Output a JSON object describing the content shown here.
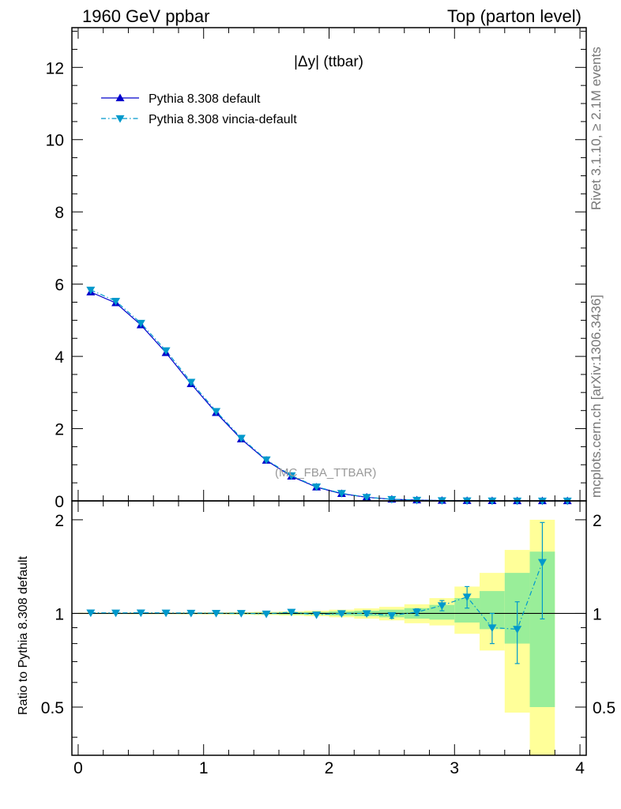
{
  "header": {
    "left": "1960 GeV ppbar",
    "right": "Top (parton level)"
  },
  "side_labels": {
    "rivet": "Rivet 3.1.10, ≥ 2.1M events",
    "source": "mcplots.cern.ch [arXiv:1306.3436]"
  },
  "panel_title": "|Δy| (ttbar)",
  "analysis_tag": "(MC_FBA_TTBAR)",
  "ratio_ylabel": "Ratio to Pythia 8.308 default",
  "chart_data": [
    {
      "type": "line",
      "title": "|Δy| (ttbar)",
      "xlabel": "",
      "ylabel": "",
      "xlim": [
        -0.05,
        4.05
      ],
      "ylim": [
        0,
        13.1
      ],
      "grid": false,
      "legend_position": "top-left",
      "x_ticks": [
        "0",
        "1",
        "2",
        "3",
        "4"
      ],
      "y_ticks": [
        "0",
        "2",
        "4",
        "6",
        "8",
        "10",
        "12"
      ],
      "x": [
        0.1,
        0.3,
        0.5,
        0.7,
        0.9,
        1.1,
        1.3,
        1.5,
        1.7,
        1.9,
        2.1,
        2.3,
        2.5,
        2.7,
        2.9,
        3.1,
        3.3,
        3.5,
        3.7,
        3.9
      ],
      "series": [
        {
          "name": "Pythia 8.308 default",
          "color": "#0000cc",
          "marker": "triangle-up",
          "line": "solid",
          "values": [
            5.78,
            5.48,
            4.87,
            4.1,
            3.24,
            2.44,
            1.71,
            1.12,
            0.68,
            0.38,
            0.2,
            0.1,
            0.045,
            0.022,
            0.01,
            0.005,
            0.002,
            0.001,
            0.0005,
            0.0002
          ]
        },
        {
          "name": "Pythia 8.308 vincia-default",
          "color": "#0099cc",
          "marker": "triangle-down",
          "line": "dash-dot",
          "values": [
            5.84,
            5.53,
            4.92,
            4.16,
            3.29,
            2.48,
            1.74,
            1.14,
            0.7,
            0.39,
            0.21,
            0.1,
            0.045,
            0.022,
            0.011,
            0.006,
            0.002,
            0.001,
            0.0007,
            0.0002
          ]
        }
      ]
    },
    {
      "type": "line",
      "title": "",
      "xlabel": "",
      "ylabel": "Ratio to Pythia 8.308 default",
      "xlim": [
        -0.05,
        4.05
      ],
      "ylim": [
        0.35,
        2.3
      ],
      "y_scale": "log",
      "grid": false,
      "x_ticks": [
        "0",
        "1",
        "2",
        "3",
        "4"
      ],
      "y_ticks": [
        "0.5",
        "1",
        "2"
      ],
      "reference_line": 1,
      "bins": [
        {
          "lo": 0.0,
          "hi": 0.2,
          "green": [
            0.997,
            1.003
          ],
          "yellow": [
            0.995,
            1.005
          ]
        },
        {
          "lo": 0.2,
          "hi": 0.4,
          "green": [
            0.997,
            1.003
          ],
          "yellow": [
            0.995,
            1.005
          ]
        },
        {
          "lo": 0.4,
          "hi": 0.6,
          "green": [
            0.997,
            1.003
          ],
          "yellow": [
            0.994,
            1.006
          ]
        },
        {
          "lo": 0.6,
          "hi": 0.8,
          "green": [
            0.997,
            1.003
          ],
          "yellow": [
            0.994,
            1.006
          ]
        },
        {
          "lo": 0.8,
          "hi": 1.0,
          "green": [
            0.996,
            1.004
          ],
          "yellow": [
            0.993,
            1.007
          ]
        },
        {
          "lo": 1.0,
          "hi": 1.2,
          "green": [
            0.996,
            1.004
          ],
          "yellow": [
            0.992,
            1.008
          ]
        },
        {
          "lo": 1.2,
          "hi": 1.4,
          "green": [
            0.995,
            1.005
          ],
          "yellow": [
            0.99,
            1.01
          ]
        },
        {
          "lo": 1.4,
          "hi": 1.6,
          "green": [
            0.994,
            1.006
          ],
          "yellow": [
            0.988,
            1.012
          ]
        },
        {
          "lo": 1.6,
          "hi": 1.8,
          "green": [
            0.992,
            1.008
          ],
          "yellow": [
            0.985,
            1.015
          ]
        },
        {
          "lo": 1.8,
          "hi": 2.0,
          "green": [
            0.99,
            1.01
          ],
          "yellow": [
            0.98,
            1.02
          ]
        },
        {
          "lo": 2.0,
          "hi": 2.2,
          "green": [
            0.985,
            1.015
          ],
          "yellow": [
            0.972,
            1.028
          ]
        },
        {
          "lo": 2.2,
          "hi": 2.4,
          "green": [
            0.98,
            1.02
          ],
          "yellow": [
            0.962,
            1.038
          ]
        },
        {
          "lo": 2.4,
          "hi": 2.6,
          "green": [
            0.972,
            1.028
          ],
          "yellow": [
            0.95,
            1.05
          ]
        },
        {
          "lo": 2.6,
          "hi": 2.8,
          "green": [
            0.962,
            1.04
          ],
          "yellow": [
            0.93,
            1.07
          ]
        },
        {
          "lo": 2.8,
          "hi": 3.0,
          "green": [
            0.955,
            1.065
          ],
          "yellow": [
            0.915,
            1.12
          ]
        },
        {
          "lo": 3.0,
          "hi": 3.2,
          "green": [
            0.935,
            1.12
          ],
          "yellow": [
            0.86,
            1.22
          ]
        },
        {
          "lo": 3.2,
          "hi": 3.4,
          "green": [
            0.89,
            1.18
          ],
          "yellow": [
            0.76,
            1.35
          ]
        },
        {
          "lo": 3.4,
          "hi": 3.6,
          "green": [
            0.8,
            1.35
          ],
          "yellow": [
            0.48,
            1.6
          ]
        },
        {
          "lo": 3.6,
          "hi": 3.8,
          "green": [
            0.5,
            1.58
          ],
          "yellow": [
            0.35,
            2.0
          ]
        }
      ],
      "series": [
        {
          "name": "Pythia 8.308 default",
          "color": "#0000cc",
          "values": [
            1,
            1,
            1,
            1,
            1,
            1,
            1,
            1,
            1,
            1,
            1,
            1,
            1,
            1,
            1,
            1,
            1,
            1,
            1
          ]
        },
        {
          "name": "Pythia 8.308 vincia-default",
          "color": "#0099cc",
          "marker": "triangle-down",
          "line": "dash-dot",
          "values": [
            1.005,
            1.004,
            1.005,
            1.004,
            1.003,
            1.002,
            1.001,
            0.997,
            1.01,
            0.99,
            1.0,
            1.0,
            0.985,
            1.01,
            1.06,
            1.13,
            0.9,
            0.89,
            1.46
          ],
          "errors": [
            0.003,
            0.003,
            0.003,
            0.003,
            0.004,
            0.004,
            0.005,
            0.006,
            0.008,
            0.01,
            0.012,
            0.015,
            0.02,
            0.025,
            0.04,
            0.09,
            0.1,
            0.2,
            0.5
          ]
        }
      ]
    }
  ]
}
